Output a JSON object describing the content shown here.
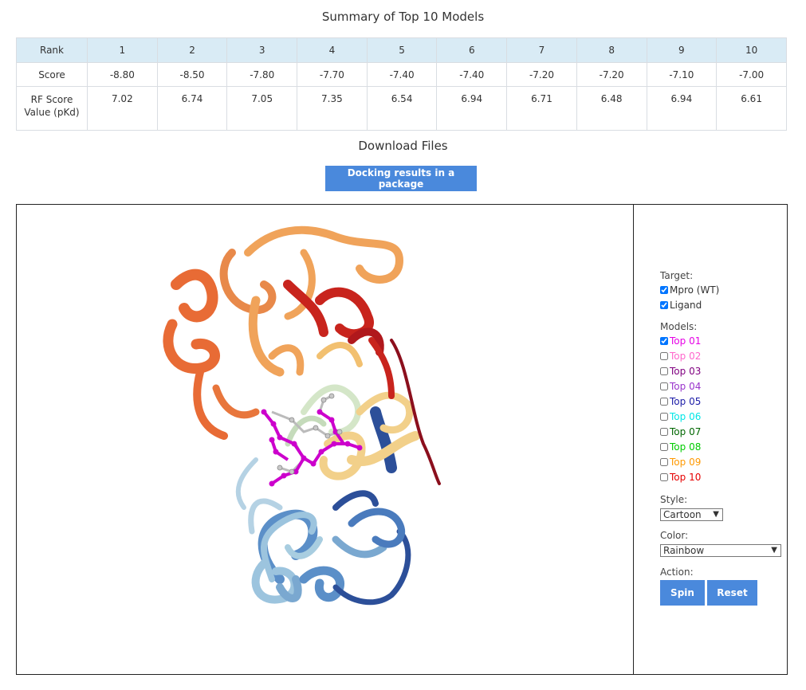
{
  "summary": {
    "title": "Summary of Top 10 Models",
    "header": [
      "Rank",
      "1",
      "2",
      "3",
      "4",
      "5",
      "6",
      "7",
      "8",
      "9",
      "10"
    ],
    "score_row": [
      "Score",
      "-8.80",
      "-8.50",
      "-7.80",
      "-7.70",
      "-7.40",
      "-7.40",
      "-7.20",
      "-7.20",
      "-7.10",
      "-7.00"
    ],
    "rf_row": [
      "RF Score Value (pKd)",
      "7.02",
      "6.74",
      "7.05",
      "7.35",
      "6.54",
      "6.94",
      "6.71",
      "6.48",
      "6.94",
      "6.61"
    ]
  },
  "download": {
    "title": "Download Files",
    "button_label": "Docking results in a package"
  },
  "viewer": {
    "ligand_color": "#d400d4",
    "rainbow": [
      "#2c4f99",
      "#5b8fc8",
      "#9cc4de",
      "#d4e6c8",
      "#f2d08a",
      "#f0a35a",
      "#e86b35",
      "#c8241d",
      "#8b0f1d"
    ]
  },
  "panel": {
    "target_label": "Target:",
    "targets": [
      {
        "label": "Mpro (WT)",
        "checked": true
      },
      {
        "label": "Ligand",
        "checked": true
      }
    ],
    "models_label": "Models:",
    "models": [
      {
        "label": "Top 01",
        "color": "#e600e6",
        "checked": true
      },
      {
        "label": "Top 02",
        "color": "#ff66cc",
        "checked": false
      },
      {
        "label": "Top 03",
        "color": "#800080",
        "checked": false
      },
      {
        "label": "Top 04",
        "color": "#9933cc",
        "checked": false
      },
      {
        "label": "Top 05",
        "color": "#1a1aa6",
        "checked": false
      },
      {
        "label": "Top 06",
        "color": "#00e6e6",
        "checked": false
      },
      {
        "label": "Top 07",
        "color": "#006600",
        "checked": false
      },
      {
        "label": "Top 08",
        "color": "#00cc00",
        "checked": false
      },
      {
        "label": "Top 09",
        "color": "#ff9900",
        "checked": false
      },
      {
        "label": "Top 10",
        "color": "#e60000",
        "checked": false
      }
    ],
    "style_label": "Style:",
    "style_value": "Cartoon",
    "color_label": "Color:",
    "color_value": "Rainbow",
    "action_label": "Action:",
    "spin_label": "Spin",
    "reset_label": "Reset"
  }
}
